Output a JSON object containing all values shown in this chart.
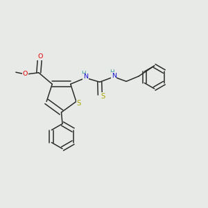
{
  "bg_color": "#e8eae8",
  "bond_color": "#2a2a2a",
  "atom_colors": {
    "O": "#e00000",
    "S": "#aaaa00",
    "N": "#1010cc",
    "H": "#3a9a9a"
  },
  "lw": 1.1,
  "fs": 6.8,
  "dbo": 0.013
}
